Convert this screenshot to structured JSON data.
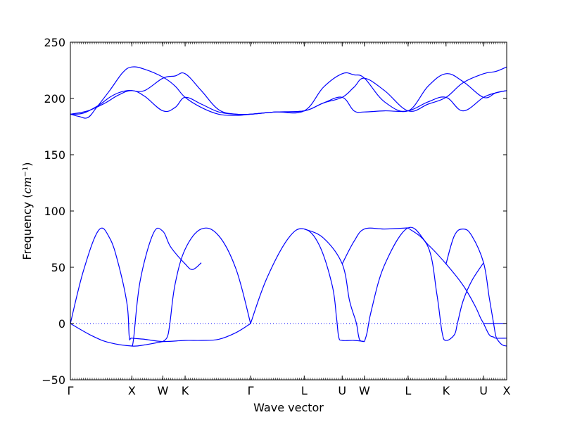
{
  "chart_data": {
    "type": "line",
    "title": "",
    "xlabel": "Wave vector",
    "ylabel": {
      "text": "Frequency (",
      "unit_main": "cm",
      "unit_sup": "−1",
      "close": ")"
    },
    "ylim": [
      -50,
      250
    ],
    "yticks": [
      -50,
      0,
      50,
      100,
      150,
      200,
      250
    ],
    "xlim": [
      0,
      1
    ],
    "xticks": [
      {
        "label": "Γ",
        "x": 0.0
      },
      {
        "label": "X",
        "x": 0.141
      },
      {
        "label": "W",
        "x": 0.212
      },
      {
        "label": "K",
        "x": 0.263
      },
      {
        "label": "Γ",
        "x": 0.413
      },
      {
        "label": "L",
        "x": 0.536
      },
      {
        "label": "U",
        "x": 0.623
      },
      {
        "label": "W",
        "x": 0.674
      },
      {
        "label": "L",
        "x": 0.774
      },
      {
        "label": "K",
        "x": 0.861
      },
      {
        "label": "U",
        "x": 0.947
      },
      {
        "label": "X",
        "x": 1.0
      }
    ],
    "zero_line": {
      "y": 0,
      "style": "dotted"
    },
    "grid": false,
    "line_color": "#0000ff",
    "series": [
      {
        "x": [
          0,
          0.03,
          0.065,
          0.09,
          0.11,
          0.13,
          0.141,
          0.17,
          0.212,
          0.24,
          0.263,
          0.3,
          0.34,
          0.38,
          0.413,
          0.47,
          0.536,
          0.58,
          0.623,
          0.65,
          0.674,
          0.72,
          0.774,
          0.82,
          0.861,
          0.9,
          0.947,
          0.975,
          1.0
        ],
        "y": [
          186,
          187,
          194,
          201,
          205,
          207,
          207,
          207,
          218,
          220,
          222,
          207,
          190,
          186,
          186,
          188,
          189,
          196,
          201,
          210,
          218,
          207,
          189,
          195,
          201,
          214,
          222,
          224,
          228
        ]
      },
      {
        "x": [
          0,
          0.02,
          0.04,
          0.06,
          0.09,
          0.12,
          0.141,
          0.17,
          0.212,
          0.24,
          0.263,
          0.3,
          0.34,
          0.38,
          0.413,
          0.47,
          0.536,
          0.58,
          0.623,
          0.65,
          0.674,
          0.72,
          0.774,
          0.82,
          0.861,
          0.9,
          0.947,
          0.975,
          1.0
        ],
        "y": [
          186,
          184,
          183,
          192,
          207,
          223,
          228,
          226,
          219,
          211,
          201,
          192,
          186,
          185,
          186,
          188,
          189,
          210,
          222,
          221,
          218,
          197,
          189,
          211,
          222,
          215,
          201,
          205,
          207
        ]
      },
      {
        "x": [
          0,
          0.04,
          0.08,
          0.11,
          0.141,
          0.17,
          0.212,
          0.24,
          0.263,
          0.3,
          0.34,
          0.38,
          0.413,
          0.47,
          0.536,
          0.58,
          0.623,
          0.65,
          0.674,
          0.72,
          0.774,
          0.82,
          0.861,
          0.9,
          0.947,
          0.975,
          1.0
        ],
        "y": [
          186,
          189,
          196,
          203,
          207,
          202,
          189,
          192,
          201,
          195,
          188,
          186,
          186,
          188,
          189,
          196,
          201,
          189,
          188,
          189,
          189,
          197,
          201,
          189,
          201,
          205,
          207
        ]
      },
      {
        "x": [
          0,
          0.03,
          0.065,
          0.09,
          0.11,
          0.13,
          0.135,
          0.141,
          0.17,
          0.212,
          0.263,
          0.3,
          0.34,
          0.38,
          0.413
        ],
        "y": [
          0,
          47,
          83,
          76,
          53,
          17,
          -12,
          -13,
          -14,
          -16,
          -15,
          -15,
          -14,
          -8,
          0
        ]
      },
      {
        "x": [
          0,
          0.05,
          0.09,
          0.141,
          0.17,
          0.212
        ],
        "y": [
          0,
          -11,
          -17,
          -20,
          -19,
          -16
        ]
      },
      {
        "x": [
          0.141,
          0.145,
          0.16,
          0.19,
          0.212,
          0.23,
          0.263,
          0.28,
          0.3
        ],
        "y": [
          -20,
          -13,
          38,
          80,
          82,
          68,
          53,
          48,
          54
        ]
      },
      {
        "x": [
          0.212,
          0.222,
          0.228,
          0.24,
          0.263,
          0.3,
          0.34,
          0.38,
          0.413
        ],
        "y": [
          -16,
          -12,
          0,
          35,
          66,
          84,
          78,
          48,
          0
        ]
      },
      {
        "x": [
          0.413,
          0.45,
          0.5,
          0.536,
          0.57,
          0.6,
          0.61,
          0.615,
          0.623,
          0.65,
          0.674
        ],
        "y": [
          0,
          40,
          76,
          84,
          70,
          34,
          5,
          -12,
          -15,
          -15,
          -16
        ]
      },
      {
        "x": [
          0.536,
          0.58,
          0.623,
          0.64,
          0.655,
          0.66,
          0.664,
          0.674
        ],
        "y": [
          84,
          76,
          53,
          20,
          1,
          -10,
          -15,
          -16
        ]
      },
      {
        "x": [
          0.623,
          0.65,
          0.674,
          0.72,
          0.774
        ],
        "y": [
          53,
          73,
          84,
          84,
          85
        ]
      },
      {
        "x": [
          0.674,
          0.68,
          0.69,
          0.72,
          0.774,
          0.82,
          0.861,
          0.9,
          0.927,
          0.94,
          0.947,
          0.96,
          0.97,
          0.975,
          1.0
        ],
        "y": [
          -16,
          -8,
          12,
          52,
          85,
          70,
          53,
          34,
          16,
          5,
          0,
          -10,
          -12,
          -13,
          -13
        ]
      },
      {
        "x": [
          0.774,
          0.82,
          0.84,
          0.852,
          0.861,
          0.88,
          0.887,
          0.9,
          0.92,
          0.947
        ],
        "y": [
          85,
          68,
          26,
          -8,
          -15,
          -10,
          0,
          20,
          38,
          54
        ]
      },
      {
        "x": [
          0.861,
          0.88,
          0.9,
          0.92,
          0.947,
          0.96,
          0.97,
          0.975,
          0.98,
          0.99,
          1.0
        ],
        "y": [
          53,
          78,
          84,
          78,
          54,
          23,
          0,
          -11,
          -15,
          -19,
          -20
        ]
      },
      {
        "x": [
          0.947,
          0.96,
          0.98,
          1.0
        ],
        "y": [
          0,
          0,
          0,
          0
        ]
      }
    ]
  }
}
